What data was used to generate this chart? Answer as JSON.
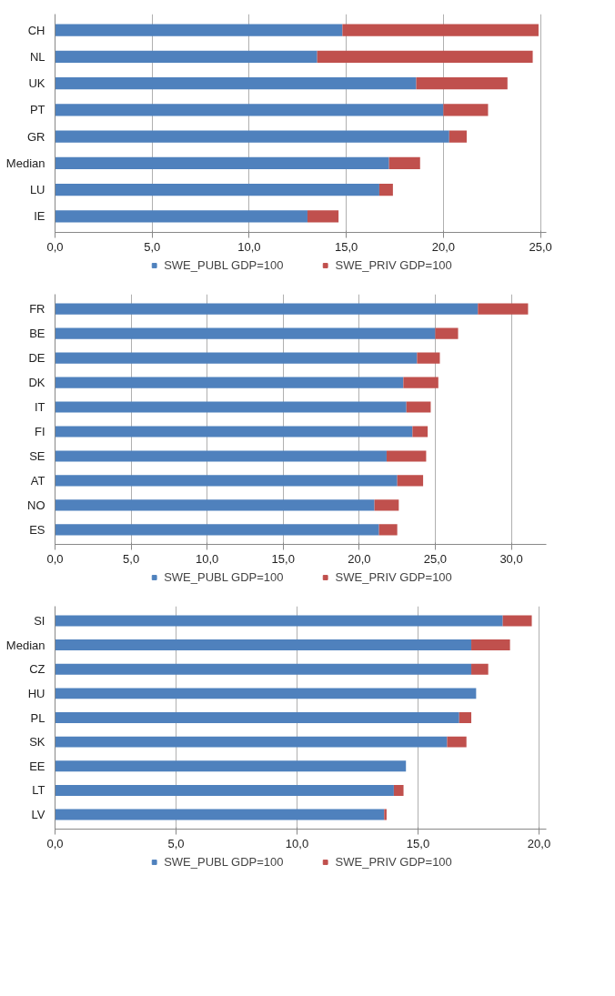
{
  "chart_data": [
    {
      "type": "bar",
      "orientation": "horizontal",
      "stacked": true,
      "categories": [
        "CH",
        "NL",
        "UK",
        "PT",
        "GR",
        "Median",
        "LU",
        "IE"
      ],
      "series": [
        {
          "name": "SWE_PUBL GDP=100",
          "color": "#4f81bd",
          "values": [
            14.8,
            13.5,
            18.6,
            20.0,
            20.3,
            17.2,
            16.7,
            13.0
          ]
        },
        {
          "name": "SWE_PRIV GDP=100",
          "color": "#c0504d",
          "values": [
            10.1,
            11.1,
            4.7,
            2.3,
            0.9,
            1.6,
            0.7,
            1.6
          ]
        }
      ],
      "xlim": [
        0,
        25.3
      ],
      "xticks": [
        {
          "value": 0,
          "label": "0,0"
        },
        {
          "value": 5,
          "label": "5,0"
        },
        {
          "value": 10,
          "label": "10,0"
        },
        {
          "value": 15,
          "label": "15,0"
        },
        {
          "value": 20,
          "label": "20,0"
        },
        {
          "value": 25,
          "label": "25,0"
        }
      ],
      "grid": "x",
      "legend": "bottom"
    },
    {
      "type": "bar",
      "orientation": "horizontal",
      "stacked": true,
      "categories": [
        "FR",
        "BE",
        "DE",
        "DK",
        "IT",
        "FI",
        "SE",
        "AT",
        "NO",
        "ES"
      ],
      "series": [
        {
          "name": "SWE_PUBL GDP=100",
          "color": "#4f81bd",
          "values": [
            27.8,
            25.0,
            23.8,
            22.9,
            23.1,
            23.5,
            21.8,
            22.5,
            21.0,
            21.3
          ]
        },
        {
          "name": "SWE_PRIV GDP=100",
          "color": "#c0504d",
          "values": [
            3.3,
            1.5,
            1.5,
            2.3,
            1.6,
            1.0,
            2.6,
            1.7,
            1.6,
            1.2
          ]
        }
      ],
      "xlim": [
        0,
        32.3
      ],
      "xticks": [
        {
          "value": 0,
          "label": "0,0"
        },
        {
          "value": 5,
          "label": "5,0"
        },
        {
          "value": 10,
          "label": "10,0"
        },
        {
          "value": 15,
          "label": "15,0"
        },
        {
          "value": 20,
          "label": "20,0"
        },
        {
          "value": 25,
          "label": "25,0"
        },
        {
          "value": 30,
          "label": "30,0"
        }
      ],
      "grid": "x",
      "legend": "bottom"
    },
    {
      "type": "bar",
      "orientation": "horizontal",
      "stacked": true,
      "categories": [
        "SI",
        "Median",
        "CZ",
        "HU",
        "PL",
        "SK",
        "EE",
        "LT",
        "LV"
      ],
      "series": [
        {
          "name": "SWE_PUBL GDP=100",
          "color": "#4f81bd",
          "values": [
            18.5,
            17.2,
            17.2,
            17.4,
            16.7,
            16.2,
            14.5,
            14.0,
            13.6
          ]
        },
        {
          "name": "SWE_PRIV GDP=100",
          "color": "#c0504d",
          "values": [
            1.2,
            1.6,
            0.7,
            0,
            0.5,
            0.8,
            0,
            0.4,
            0.1
          ]
        }
      ],
      "xlim": [
        0,
        20.3
      ],
      "xticks": [
        {
          "value": 0,
          "label": "0,0"
        },
        {
          "value": 5,
          "label": "5,0"
        },
        {
          "value": 10,
          "label": "10,0"
        },
        {
          "value": 15,
          "label": "15,0"
        },
        {
          "value": 20,
          "label": "20,0"
        }
      ],
      "grid": "x",
      "legend": "bottom"
    }
  ]
}
